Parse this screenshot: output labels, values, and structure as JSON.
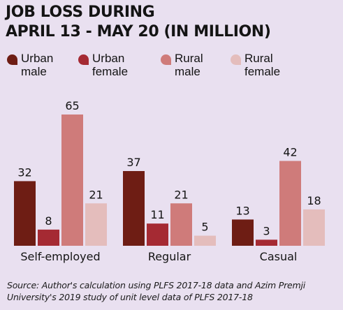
{
  "colors": {
    "background": "#e9e0f0",
    "urban_male": "#6e1d14",
    "urban_female": "#a52a33",
    "rural_male": "#cf7b7a",
    "rural_female": "#e4bdbc"
  },
  "chart_data": {
    "type": "bar",
    "title": "JOB LOSS DURING APRIL 13 - MAY 20 (IN MILLION)",
    "categories": [
      "Self-employed",
      "Regular",
      "Casual"
    ],
    "series": [
      {
        "name": "Urban male",
        "color": "#6e1d14",
        "values": [
          32,
          37,
          13
        ]
      },
      {
        "name": "Urban female",
        "color": "#a52a33",
        "values": [
          8,
          11,
          3
        ]
      },
      {
        "name": "Rural male",
        "color": "#cf7b7a",
        "values": [
          65,
          21,
          42
        ]
      },
      {
        "name": "Rural female",
        "color": "#e4bdbc",
        "values": [
          21,
          5,
          18
        ]
      }
    ],
    "ylim": [
      0,
      65
    ],
    "grid": false,
    "legend_position": "top",
    "data_labels": true,
    "source": "Source: Author's calculation using PLFS 2017-18 data and Azim Premji University's 2019 study of unit level data of PLFS 2017-18"
  }
}
